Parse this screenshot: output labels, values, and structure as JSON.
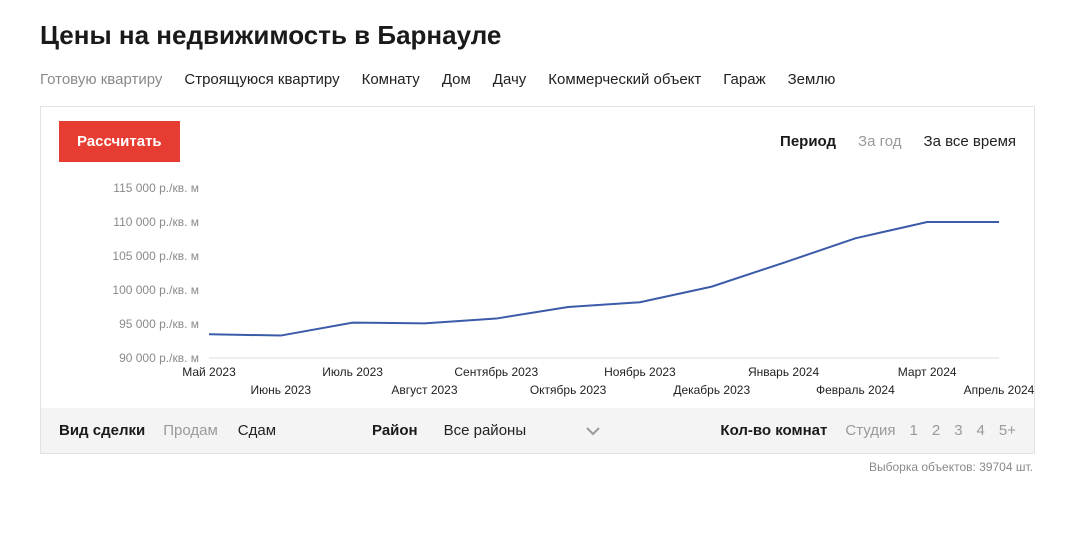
{
  "title": "Цены на недвижимость в Барнауле",
  "tabs": {
    "t0": "Готовую квартиру",
    "t1": "Строящуюся квартиру",
    "t2": "Комнату",
    "t3": "Дом",
    "t4": "Дачу",
    "t5": "Коммерческий объект",
    "t6": "Гараж",
    "t7": "Землю"
  },
  "calc_button": "Рассчитать",
  "period": {
    "label": "Период",
    "year": "За год",
    "all": "За все время"
  },
  "chart": {
    "type": "line",
    "line_color": "#3b5ba9",
    "background_color": "#ffffff",
    "grid_color": "#dcdcdc",
    "y_label_color": "#8a8a8a",
    "x_label_color": "#222222",
    "label_fontsize": 12,
    "line_width": 2,
    "ylim": [
      90000,
      115000
    ],
    "ytick_step": 5000,
    "y_unit": "р./кв. м",
    "y_ticks": [
      {
        "value": 90000,
        "label": "90 000 р./кв. м"
      },
      {
        "value": 95000,
        "label": "95 000 р./кв. м"
      },
      {
        "value": 100000,
        "label": "100 000 р./кв. м"
      },
      {
        "value": 105000,
        "label": "105 000 р./кв. м"
      },
      {
        "value": 110000,
        "label": "110 000 р./кв. м"
      },
      {
        "value": 115000,
        "label": "115 000 р./кв. м"
      }
    ],
    "x_categories": [
      "Май 2023",
      "Июнь 2023",
      "Июль 2023",
      "Август 2023",
      "Сентябрь 2023",
      "Октябрь 2023",
      "Ноябрь 2023",
      "Декабрь 2023",
      "Январь 2024",
      "Февраль 2024",
      "Март 2024",
      "Апрель 2024"
    ],
    "values": [
      93500,
      93300,
      95200,
      95100,
      95800,
      97500,
      98200,
      100500,
      104000,
      107600,
      110000,
      110000
    ]
  },
  "filters": {
    "deal_label": "Вид сделки",
    "deal_sell": "Продам",
    "deal_rent": "Сдам",
    "district_label": "Район",
    "district_value": "Все районы",
    "rooms_label": "Кол-во комнат",
    "rooms": {
      "r0": "Студия",
      "r1": "1",
      "r2": "2",
      "r3": "3",
      "r4": "4",
      "r5": "5+"
    }
  },
  "footer": "Выборка объектов: 39704 шт."
}
